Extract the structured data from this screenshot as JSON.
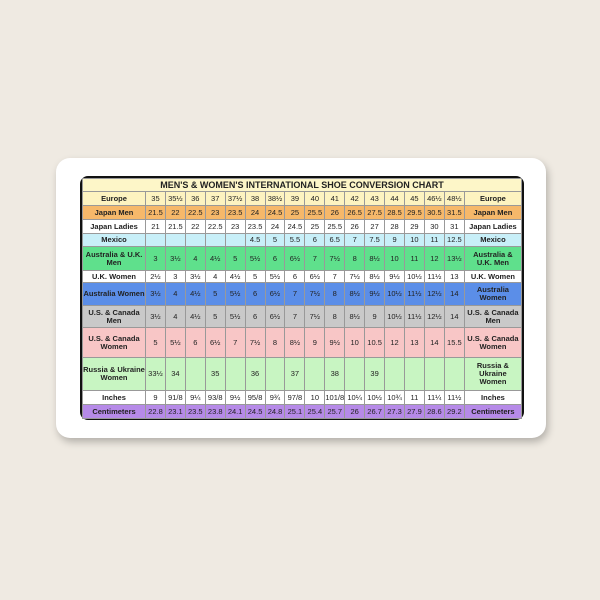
{
  "title": "MEN'S & WOMEN'S INTERNATIONAL SHOE CONVERSION CHART",
  "rows": [
    {
      "label": "Europe",
      "color": "#fdf3c0",
      "values": [
        "35",
        "35½",
        "36",
        "37",
        "37½",
        "38",
        "38½",
        "39",
        "40",
        "41",
        "42",
        "43",
        "44",
        "45",
        "46½",
        "48½"
      ]
    },
    {
      "label": "Japan Men",
      "color": "#f6b86a",
      "values": [
        "21.5",
        "22",
        "22.5",
        "23",
        "23.5",
        "24",
        "24.5",
        "25",
        "25.5",
        "26",
        "26.5",
        "27.5",
        "28.5",
        "29.5",
        "30.5",
        "31.5"
      ]
    },
    {
      "label": "Japan Ladies",
      "color": "#ffffff",
      "values": [
        "21",
        "21.5",
        "22",
        "22.5",
        "23",
        "23.5",
        "24",
        "24.5",
        "25",
        "25.5",
        "26",
        "27",
        "28",
        "29",
        "30",
        "31"
      ]
    },
    {
      "label": "Mexico",
      "color": "#c8eff8",
      "values": [
        "",
        "",
        "",
        "",
        "",
        "4.5",
        "5",
        "5.5",
        "6",
        "6.5",
        "7",
        "7.5",
        "9",
        "10",
        "11",
        "12.5"
      ]
    },
    {
      "label": "Australia & U.K. Men",
      "color": "#5fe08c",
      "values": [
        "3",
        "3½",
        "4",
        "4½",
        "5",
        "5½",
        "6",
        "6½",
        "7",
        "7½",
        "8",
        "8½",
        "10",
        "11",
        "12",
        "13½"
      ]
    },
    {
      "label": "U.K. Women",
      "color": "#ffffff",
      "values": [
        "2½",
        "3",
        "3½",
        "4",
        "4½",
        "5",
        "5½",
        "6",
        "6½",
        "7",
        "7½",
        "8½",
        "9½",
        "10½",
        "11½",
        "13"
      ]
    },
    {
      "label": "Australia Women",
      "color": "#5b8ee8",
      "values": [
        "3½",
        "4",
        "4½",
        "5",
        "5½",
        "6",
        "6½",
        "7",
        "7½",
        "8",
        "8½",
        "9½",
        "10½",
        "11½",
        "12½",
        "14"
      ]
    },
    {
      "label": "U.S. & Canada Men",
      "color": "#c9c9c9",
      "values": [
        "3½",
        "4",
        "4½",
        "5",
        "5½",
        "6",
        "6½",
        "7",
        "7½",
        "8",
        "8½",
        "9",
        "10½",
        "11½",
        "12½",
        "14"
      ]
    },
    {
      "label": "U.S. & Canada Women",
      "color": "#f8c6c6",
      "values": [
        "5",
        "5½",
        "6",
        "6½",
        "7",
        "7½",
        "8",
        "8½",
        "9",
        "9½",
        "10",
        "10.5",
        "12",
        "13",
        "14",
        "15.5"
      ]
    },
    {
      "label": "Russia & Ukraine Women",
      "color": "#c8f5c2",
      "values": [
        "33½",
        "34",
        "",
        "35",
        "",
        "36",
        "",
        "37",
        "",
        "38",
        "",
        "39",
        "",
        "",
        "",
        ""
      ]
    },
    {
      "label": "Inches",
      "color": "#ffffff",
      "values": [
        "9",
        "91/8",
        "9¼",
        "93/8",
        "9½",
        "95/8",
        "9¾",
        "97/8",
        "10",
        "101/8",
        "10¼",
        "10½",
        "10¾",
        "11",
        "11¼",
        "11½"
      ]
    },
    {
      "label": "Centimeters",
      "color": "#b68ae8",
      "values": [
        "22.8",
        "23.1",
        "23.5",
        "23.8",
        "24.1",
        "24.5",
        "24.8",
        "25.1",
        "25.4",
        "25.7",
        "26",
        "26.7",
        "27.3",
        "27.9",
        "28.6",
        "29.2"
      ]
    }
  ]
}
